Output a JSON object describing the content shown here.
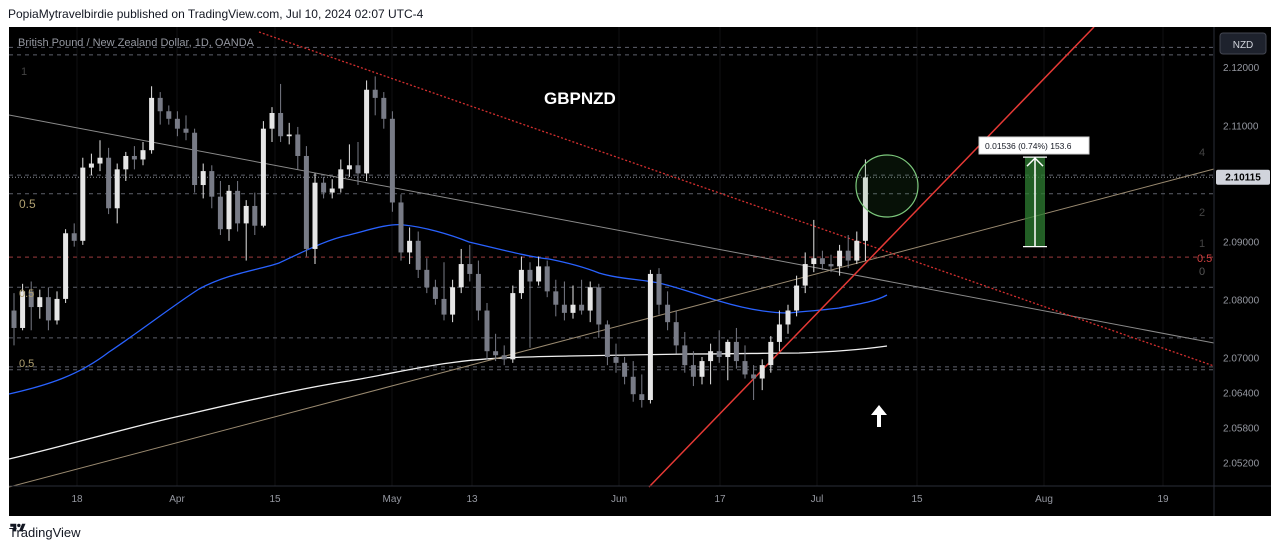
{
  "header": {
    "published_text": "PopiaMytravelbirdie published on TradingView.com, Jul 10, 2024 02:07 UTC-4"
  },
  "footer": {
    "brand": "TradingView"
  },
  "chart_data": {
    "type": "candlestick",
    "symbol_line": "British Pound / New Zealand Dollar, 1D, OANDA",
    "title": "GBPNZD",
    "currency_button": "NZD",
    "ylim": [
      2.048,
      2.127
    ],
    "y_ticks": [
      2.12,
      2.11,
      2.09,
      2.08,
      2.07,
      2.064,
      2.058,
      2.052
    ],
    "y_tick_labels": [
      "2.12000",
      "2.11000",
      "2.09000",
      "2.08000",
      "2.07000",
      "2.06400",
      "2.05800",
      "2.05200"
    ],
    "last_price_label": "2.10115",
    "x_labels": [
      "18",
      "Apr",
      "15",
      "May",
      "13",
      "Jun",
      "17",
      "Jul",
      "15",
      "Aug",
      "19"
    ],
    "measure_label": "0.01536 (0.74%) 153.6",
    "measure_range": [
      2.0892,
      2.1046
    ],
    "fib_labels": [
      "0.5",
      "0.5",
      "0.5",
      "0.5",
      "0",
      "1",
      "1",
      "4",
      "2"
    ],
    "horizontal_levels": [
      2.1235,
      2.1222,
      2.1015,
      2.0983,
      2.0874,
      2.0822,
      2.0735,
      2.0685,
      2.068
    ],
    "candles": [
      {
        "o": 2.0782,
        "h": 2.0812,
        "l": 2.0722,
        "c": 2.0752
      },
      {
        "o": 2.0752,
        "h": 2.0828,
        "l": 2.0748,
        "c": 2.0815
      },
      {
        "o": 2.0815,
        "h": 2.0832,
        "l": 2.0748,
        "c": 2.0788
      },
      {
        "o": 2.0788,
        "h": 2.0818,
        "l": 2.0768,
        "c": 2.0805
      },
      {
        "o": 2.0805,
        "h": 2.0822,
        "l": 2.0748,
        "c": 2.0765
      },
      {
        "o": 2.0765,
        "h": 2.0815,
        "l": 2.0758,
        "c": 2.0802
      },
      {
        "o": 2.0802,
        "h": 2.0922,
        "l": 2.0795,
        "c": 2.0915
      },
      {
        "o": 2.0915,
        "h": 2.0932,
        "l": 2.0892,
        "c": 2.0902
      },
      {
        "o": 2.0902,
        "h": 2.1045,
        "l": 2.0895,
        "c": 2.1028
      },
      {
        "o": 2.1028,
        "h": 2.1052,
        "l": 2.1015,
        "c": 2.1035
      },
      {
        "o": 2.1035,
        "h": 2.1075,
        "l": 2.1022,
        "c": 2.1045
      },
      {
        "o": 2.1045,
        "h": 2.1062,
        "l": 2.0948,
        "c": 2.0958
      },
      {
        "o": 2.0958,
        "h": 2.1035,
        "l": 2.0932,
        "c": 2.1025
      },
      {
        "o": 2.1025,
        "h": 2.1055,
        "l": 2.1005,
        "c": 2.1048
      },
      {
        "o": 2.1048,
        "h": 2.1065,
        "l": 2.1025,
        "c": 2.1042
      },
      {
        "o": 2.1042,
        "h": 2.1072,
        "l": 2.1032,
        "c": 2.1058
      },
      {
        "o": 2.1058,
        "h": 2.1168,
        "l": 2.1052,
        "c": 2.1148
      },
      {
        "o": 2.1148,
        "h": 2.1158,
        "l": 2.1102,
        "c": 2.1125
      },
      {
        "o": 2.1125,
        "h": 2.1135,
        "l": 2.1102,
        "c": 2.1112
      },
      {
        "o": 2.1112,
        "h": 2.1125,
        "l": 2.1082,
        "c": 2.1095
      },
      {
        "o": 2.1095,
        "h": 2.1118,
        "l": 2.1075,
        "c": 2.1088
      },
      {
        "o": 2.1088,
        "h": 2.1095,
        "l": 2.0985,
        "c": 2.0998
      },
      {
        "o": 2.0998,
        "h": 2.1035,
        "l": 2.0975,
        "c": 2.1022
      },
      {
        "o": 2.1022,
        "h": 2.1032,
        "l": 2.0958,
        "c": 2.0978
      },
      {
        "o": 2.0978,
        "h": 2.1005,
        "l": 2.0912,
        "c": 2.0922
      },
      {
        "o": 2.0922,
        "h": 2.0998,
        "l": 2.0902,
        "c": 2.0988
      },
      {
        "o": 2.0988,
        "h": 2.1005,
        "l": 2.0918,
        "c": 2.0932
      },
      {
        "o": 2.0932,
        "h": 2.0972,
        "l": 2.0868,
        "c": 2.0962
      },
      {
        "o": 2.0962,
        "h": 2.0985,
        "l": 2.0912,
        "c": 2.0928
      },
      {
        "o": 2.0928,
        "h": 2.1108,
        "l": 2.0925,
        "c": 2.1095
      },
      {
        "o": 2.1095,
        "h": 2.1132,
        "l": 2.1072,
        "c": 2.1122
      },
      {
        "o": 2.1122,
        "h": 2.1172,
        "l": 2.1072,
        "c": 2.1082
      },
      {
        "o": 2.1082,
        "h": 2.1105,
        "l": 2.1068,
        "c": 2.1085
      },
      {
        "o": 2.1085,
        "h": 2.1098,
        "l": 2.1025,
        "c": 2.1048
      },
      {
        "o": 2.1048,
        "h": 2.1065,
        "l": 2.0875,
        "c": 2.0888
      },
      {
        "o": 2.0888,
        "h": 2.1018,
        "l": 2.0862,
        "c": 2.1002
      },
      {
        "o": 2.1002,
        "h": 2.1012,
        "l": 2.0975,
        "c": 2.0985
      },
      {
        "o": 2.0985,
        "h": 2.1008,
        "l": 2.0975,
        "c": 2.0992
      },
      {
        "o": 2.0992,
        "h": 2.1042,
        "l": 2.0985,
        "c": 2.1025
      },
      {
        "o": 2.1025,
        "h": 2.1068,
        "l": 2.1012,
        "c": 2.1032
      },
      {
        "o": 2.1032,
        "h": 2.1072,
        "l": 2.0998,
        "c": 2.1018
      },
      {
        "o": 2.1018,
        "h": 2.1178,
        "l": 2.1005,
        "c": 2.1162
      },
      {
        "o": 2.1162,
        "h": 2.1185,
        "l": 2.1118,
        "c": 2.1148
      },
      {
        "o": 2.1148,
        "h": 2.1158,
        "l": 2.1095,
        "c": 2.1112
      },
      {
        "o": 2.1112,
        "h": 2.1125,
        "l": 2.0952,
        "c": 2.0968
      },
      {
        "o": 2.0968,
        "h": 2.0982,
        "l": 2.0868,
        "c": 2.0882
      },
      {
        "o": 2.0882,
        "h": 2.0925,
        "l": 2.0862,
        "c": 2.0902
      },
      {
        "o": 2.0902,
        "h": 2.0918,
        "l": 2.0838,
        "c": 2.0852
      },
      {
        "o": 2.0852,
        "h": 2.0872,
        "l": 2.0812,
        "c": 2.0822
      },
      {
        "o": 2.0822,
        "h": 2.0835,
        "l": 2.0792,
        "c": 2.0802
      },
      {
        "o": 2.0802,
        "h": 2.0865,
        "l": 2.0765,
        "c": 2.0775
      },
      {
        "o": 2.0775,
        "h": 2.0835,
        "l": 2.0762,
        "c": 2.0822
      },
      {
        "o": 2.0822,
        "h": 2.0888,
        "l": 2.0812,
        "c": 2.0862
      },
      {
        "o": 2.0862,
        "h": 2.0895,
        "l": 2.0832,
        "c": 2.0845
      },
      {
        "o": 2.0845,
        "h": 2.0868,
        "l": 2.0765,
        "c": 2.0782
      },
      {
        "o": 2.0782,
        "h": 2.0795,
        "l": 2.0698,
        "c": 2.0712
      },
      {
        "o": 2.0712,
        "h": 2.0742,
        "l": 2.0695,
        "c": 2.0705
      },
      {
        "o": 2.0705,
        "h": 2.0722,
        "l": 2.0688,
        "c": 2.0698
      },
      {
        "o": 2.0698,
        "h": 2.0825,
        "l": 2.0692,
        "c": 2.0812
      },
      {
        "o": 2.0812,
        "h": 2.0875,
        "l": 2.0802,
        "c": 2.0852
      },
      {
        "o": 2.0852,
        "h": 2.0865,
        "l": 2.0718,
        "c": 2.0832
      },
      {
        "o": 2.0832,
        "h": 2.0875,
        "l": 2.0825,
        "c": 2.0858
      },
      {
        "o": 2.0858,
        "h": 2.0868,
        "l": 2.0805,
        "c": 2.0815
      },
      {
        "o": 2.0815,
        "h": 2.0835,
        "l": 2.0772,
        "c": 2.0792
      },
      {
        "o": 2.0792,
        "h": 2.0832,
        "l": 2.0765,
        "c": 2.0778
      },
      {
        "o": 2.0778,
        "h": 2.0825,
        "l": 2.0768,
        "c": 2.0792
      },
      {
        "o": 2.0792,
        "h": 2.0835,
        "l": 2.0775,
        "c": 2.0782
      },
      {
        "o": 2.0782,
        "h": 2.0832,
        "l": 2.0762,
        "c": 2.0822
      },
      {
        "o": 2.0822,
        "h": 2.0828,
        "l": 2.0735,
        "c": 2.0758
      },
      {
        "o": 2.0758,
        "h": 2.0765,
        "l": 2.0688,
        "c": 2.0702
      },
      {
        "o": 2.0702,
        "h": 2.0725,
        "l": 2.0675,
        "c": 2.0692
      },
      {
        "o": 2.0692,
        "h": 2.0702,
        "l": 2.0655,
        "c": 2.0668
      },
      {
        "o": 2.0668,
        "h": 2.0695,
        "l": 2.0625,
        "c": 2.0638
      },
      {
        "o": 2.0638,
        "h": 2.0672,
        "l": 2.0615,
        "c": 2.0628
      },
      {
        "o": 2.0628,
        "h": 2.0852,
        "l": 2.0622,
        "c": 2.0845
      },
      {
        "o": 2.0845,
        "h": 2.0855,
        "l": 2.0775,
        "c": 2.0792
      },
      {
        "o": 2.0792,
        "h": 2.0815,
        "l": 2.0748,
        "c": 2.0762
      },
      {
        "o": 2.0762,
        "h": 2.0782,
        "l": 2.0708,
        "c": 2.0722
      },
      {
        "o": 2.0722,
        "h": 2.0745,
        "l": 2.0675,
        "c": 2.0688
      },
      {
        "o": 2.0688,
        "h": 2.0712,
        "l": 2.0652,
        "c": 2.0668
      },
      {
        "o": 2.0668,
        "h": 2.0702,
        "l": 2.0655,
        "c": 2.0695
      },
      {
        "o": 2.0695,
        "h": 2.0725,
        "l": 2.0655,
        "c": 2.0712
      },
      {
        "o": 2.0712,
        "h": 2.0748,
        "l": 2.0692,
        "c": 2.0702
      },
      {
        "o": 2.0702,
        "h": 2.0732,
        "l": 2.0662,
        "c": 2.0728
      },
      {
        "o": 2.0728,
        "h": 2.0752,
        "l": 2.0682,
        "c": 2.0695
      },
      {
        "o": 2.0695,
        "h": 2.0722,
        "l": 2.0665,
        "c": 2.0672
      },
      {
        "o": 2.0672,
        "h": 2.0688,
        "l": 2.0628,
        "c": 2.0665
      },
      {
        "o": 2.0665,
        "h": 2.0698,
        "l": 2.0645,
        "c": 2.0688
      },
      {
        "o": 2.0688,
        "h": 2.0738,
        "l": 2.0675,
        "c": 2.0728
      },
      {
        "o": 2.0728,
        "h": 2.0782,
        "l": 2.0712,
        "c": 2.0758
      },
      {
        "o": 2.0758,
        "h": 2.0792,
        "l": 2.0742,
        "c": 2.0782
      },
      {
        "o": 2.0782,
        "h": 2.0842,
        "l": 2.0772,
        "c": 2.0825
      },
      {
        "o": 2.0825,
        "h": 2.0882,
        "l": 2.0812,
        "c": 2.0862
      },
      {
        "o": 2.0862,
        "h": 2.0938,
        "l": 2.0848,
        "c": 2.0872
      },
      {
        "o": 2.0872,
        "h": 2.0885,
        "l": 2.0852,
        "c": 2.0862
      },
      {
        "o": 2.0862,
        "h": 2.0878,
        "l": 2.0848,
        "c": 2.0858
      },
      {
        "o": 2.0858,
        "h": 2.0895,
        "l": 2.0842,
        "c": 2.0885
      },
      {
        "o": 2.0885,
        "h": 2.0912,
        "l": 2.0855,
        "c": 2.0868
      },
      {
        "o": 2.0868,
        "h": 2.0918,
        "l": 2.0862,
        "c": 2.0902
      },
      {
        "o": 2.0902,
        "h": 2.1042,
        "l": 2.0868,
        "c": 2.1011
      }
    ]
  }
}
